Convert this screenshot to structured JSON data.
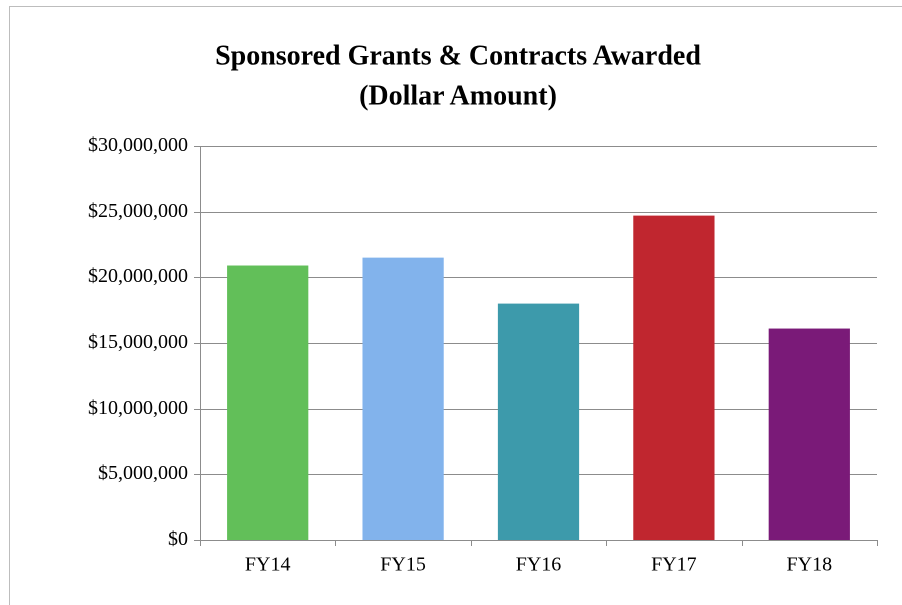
{
  "chart_data": {
    "type": "bar",
    "title": [
      "Sponsored Grants & Contracts Awarded",
      "(Dollar Amount)"
    ],
    "categories": [
      "FY14",
      "FY15",
      "FY16",
      "FY17",
      "FY18"
    ],
    "values": [
      20900000,
      21500000,
      18000000,
      24700000,
      16100000
    ],
    "colors": [
      "#62bf59",
      "#82b3ec",
      "#3d9aab",
      "#c0262f",
      "#7a1a78"
    ],
    "ylim": [
      0,
      30000000
    ],
    "yticks": [
      {
        "value": 0,
        "label": "$0"
      },
      {
        "value": 5000000,
        "label": "$5,000,000"
      },
      {
        "value": 10000000,
        "label": "$10,000,000"
      },
      {
        "value": 15000000,
        "label": "$15,000,000"
      },
      {
        "value": 20000000,
        "label": "$20,000,000"
      },
      {
        "value": 25000000,
        "label": "$25,000,000"
      },
      {
        "value": 30000000,
        "label": "$30,000,000"
      }
    ],
    "grid": true
  }
}
